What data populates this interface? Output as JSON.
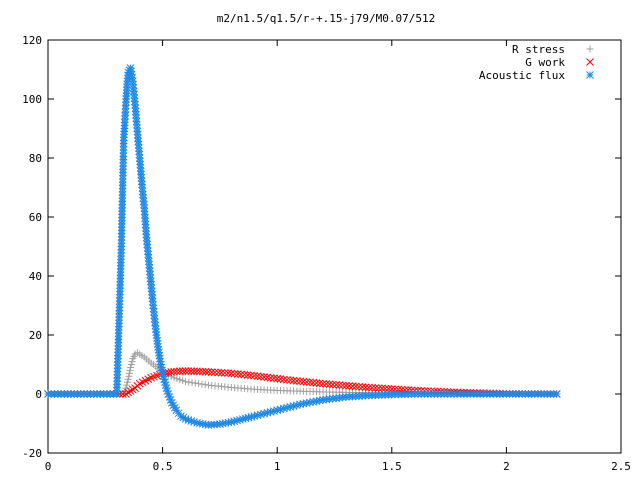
{
  "chart_data": {
    "type": "scatter",
    "title": "m2/n1.5/q1.5/r-+.15-j79/M0.07/512",
    "xlabel": "",
    "ylabel": "",
    "xlim": [
      0,
      2.5
    ],
    "ylim": [
      -20,
      120
    ],
    "x_ticks": [
      {
        "v": 0,
        "label": "0"
      },
      {
        "v": 0.5,
        "label": "0.5"
      },
      {
        "v": 1,
        "label": "1"
      },
      {
        "v": 1.5,
        "label": "1.5"
      },
      {
        "v": 2,
        "label": "2"
      },
      {
        "v": 2.5,
        "label": "2.5"
      }
    ],
    "y_ticks": [
      {
        "v": -20,
        "label": "-20"
      },
      {
        "v": 0,
        "label": "0"
      },
      {
        "v": 20,
        "label": "20"
      },
      {
        "v": 40,
        "label": "40"
      },
      {
        "v": 60,
        "label": "60"
      },
      {
        "v": 80,
        "label": "80"
      },
      {
        "v": 100,
        "label": "100"
      },
      {
        "v": 120,
        "label": "120"
      }
    ],
    "grid": false,
    "legend_position": "top-right",
    "series": [
      {
        "name": "R stress",
        "marker": "plus",
        "color": "#a0a0a0",
        "x": [
          0,
          0.1,
          0.2,
          0.3,
          0.33,
          0.34,
          0.35,
          0.36,
          0.37,
          0.38,
          0.39,
          0.4,
          0.42,
          0.45,
          0.5,
          0.55,
          0.6,
          0.7,
          0.8,
          0.9,
          1.0,
          1.2,
          1.4,
          1.6,
          1.8,
          2.0,
          2.22
        ],
        "values": [
          0,
          0,
          0,
          0,
          0,
          2,
          5,
          9,
          12,
          13.5,
          14,
          13.5,
          12.5,
          10.5,
          7.5,
          5.5,
          4.2,
          3,
          2.2,
          1.6,
          1.2,
          0.7,
          0.4,
          0.2,
          0.1,
          0.05,
          0
        ]
      },
      {
        "name": "G work",
        "marker": "x",
        "color": "#ff0000",
        "x": [
          0,
          0.1,
          0.2,
          0.3,
          0.34,
          0.36,
          0.38,
          0.4,
          0.45,
          0.5,
          0.55,
          0.6,
          0.65,
          0.7,
          0.8,
          0.9,
          1.0,
          1.1,
          1.2,
          1.4,
          1.6,
          1.8,
          2.0,
          2.22
        ],
        "values": [
          0,
          0,
          0,
          0,
          0,
          1,
          2,
          3.5,
          5.5,
          7,
          7.6,
          7.8,
          7.7,
          7.5,
          7,
          6.2,
          5.2,
          4.3,
          3.5,
          2.2,
          1.2,
          0.5,
          0.1,
          0
        ]
      },
      {
        "name": "Acoustic flux",
        "marker": "star",
        "color": "#1e88e5",
        "x": [
          0,
          0.1,
          0.2,
          0.3,
          0.32,
          0.33,
          0.335,
          0.34,
          0.345,
          0.35,
          0.36,
          0.37,
          0.38,
          0.39,
          0.4,
          0.41,
          0.42,
          0.43,
          0.44,
          0.45,
          0.46,
          0.47,
          0.48,
          0.49,
          0.5,
          0.52,
          0.54,
          0.56,
          0.58,
          0.6,
          0.65,
          0.7,
          0.75,
          0.8,
          0.85,
          0.9,
          1.0,
          1.1,
          1.2,
          1.3,
          1.4,
          1.5,
          1.6,
          1.8,
          2.0,
          2.22
        ],
        "values": [
          0,
          0,
          0,
          0,
          50,
          86,
          92,
          99,
          105,
          109,
          110.5,
          106,
          98,
          89,
          80,
          71,
          63,
          53,
          45,
          37,
          29,
          22,
          16,
          11,
          7,
          1,
          -3,
          -5.5,
          -7.5,
          -8.5,
          -9.8,
          -10.5,
          -10.2,
          -9.5,
          -8.5,
          -7.5,
          -5.5,
          -3.5,
          -2,
          -1,
          -0.5,
          -0.2,
          0,
          0,
          0,
          0
        ]
      }
    ]
  }
}
